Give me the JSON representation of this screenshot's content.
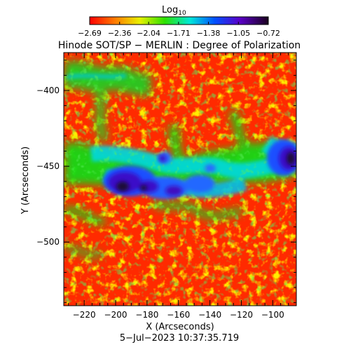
{
  "colorbar": {
    "title_main": "Log",
    "title_sub": "10",
    "ticks": [
      "−2.69",
      "−2.36",
      "−2.04",
      "−1.71",
      "−1.38",
      "−1.05",
      "−0.72"
    ]
  },
  "title": "Hinode SOT/SP − MERLIN : Degree of Polarization",
  "xaxis": {
    "label": "X (Arcseconds)",
    "ticks": [
      "−220",
      "−200",
      "−180",
      "−160",
      "−140",
      "−120",
      "−100"
    ]
  },
  "yaxis": {
    "label": "Y (Arcseconds)",
    "ticks": [
      "−400",
      "−450",
      "−500"
    ]
  },
  "timestamp": "5−Jul−2023 10:37:35.719",
  "chart_data": {
    "type": "heatmap",
    "colorscale": "rainbow (IDL)",
    "colorbar_range_log10": [
      -2.69,
      -0.72
    ],
    "colorbar_tick_values": [
      -2.69,
      -2.36,
      -2.04,
      -1.71,
      -1.38,
      -1.05,
      -0.72
    ],
    "x_tick_values": [
      -220,
      -200,
      -180,
      -160,
      -140,
      -120,
      -100
    ],
    "y_tick_values": [
      -400,
      -450,
      -500
    ],
    "xlim": [
      -233,
      -85
    ],
    "ylim": [
      -542,
      -375
    ]
  }
}
